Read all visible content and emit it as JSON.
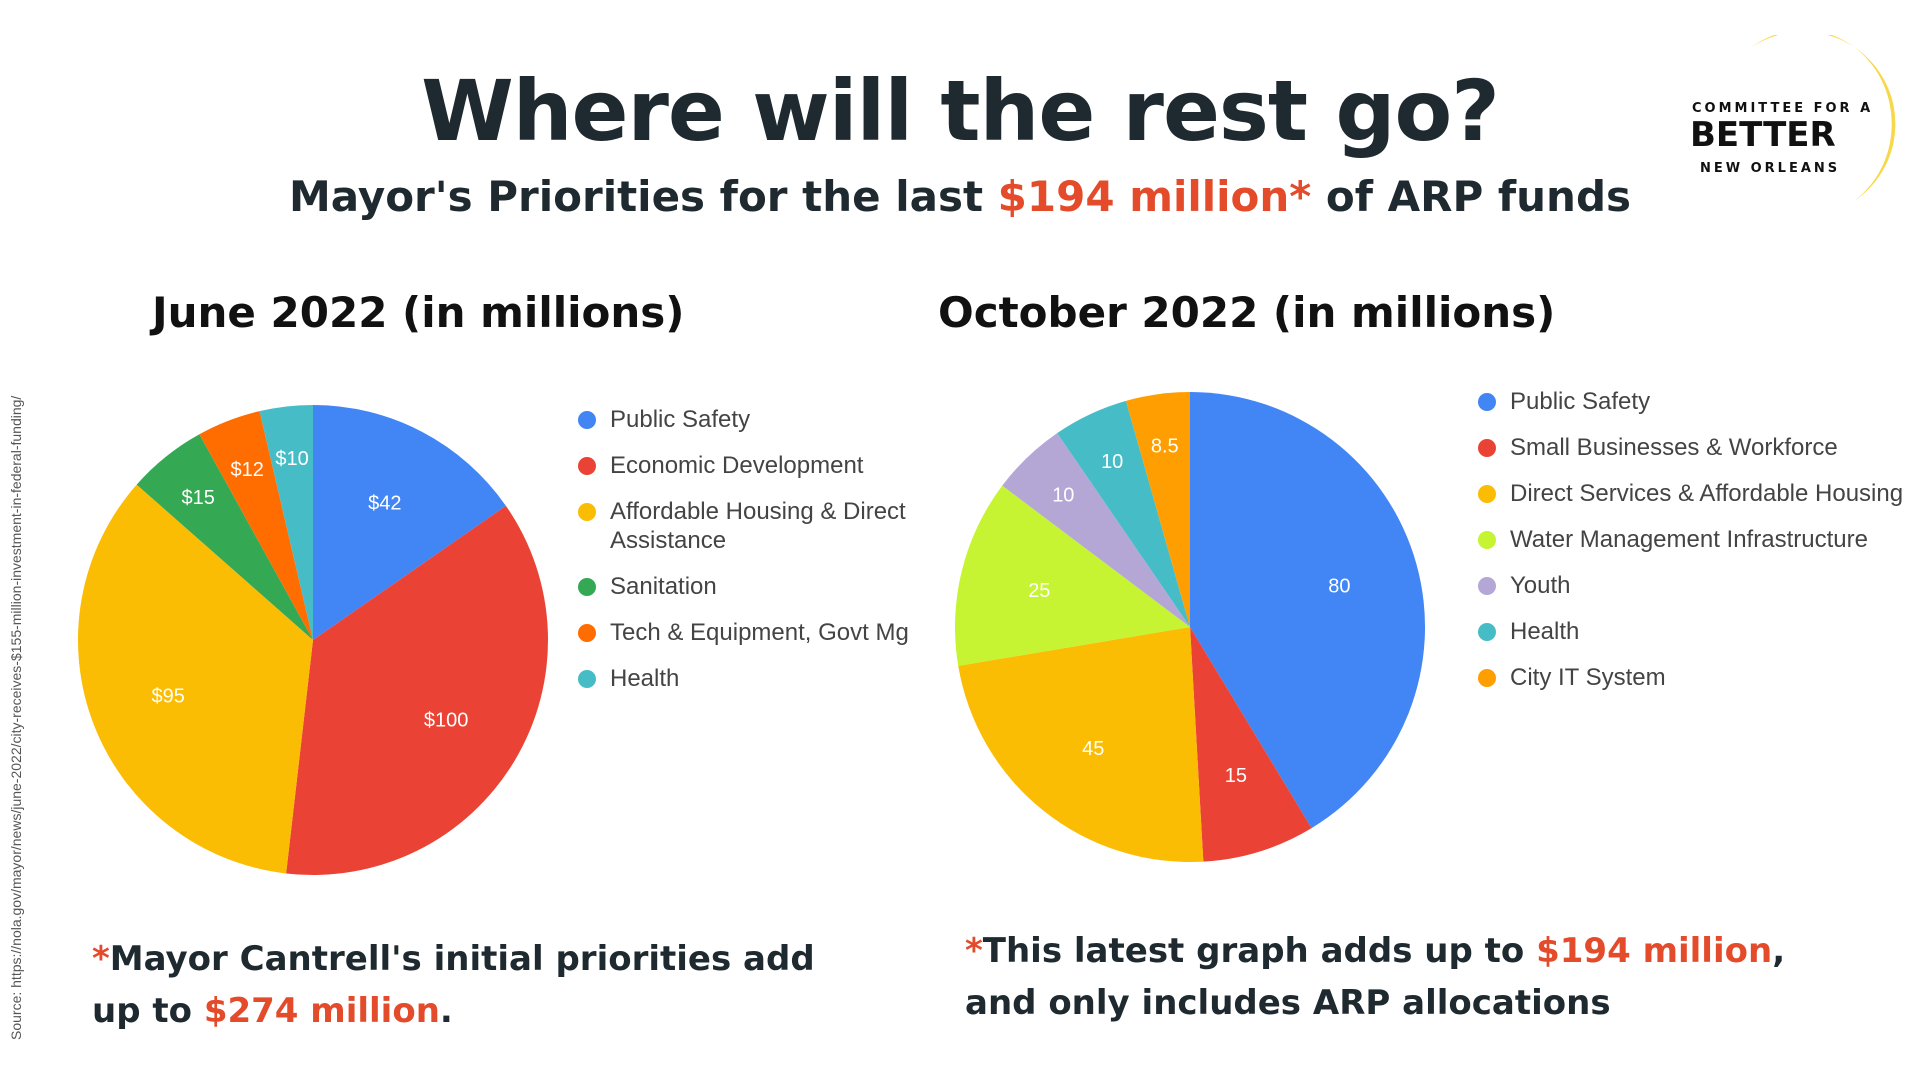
{
  "headline": "Where will the rest go?",
  "subtitle": {
    "before": "Mayor's Priorities for the last ",
    "highlight": "$194 million*",
    "after": " of ARP funds"
  },
  "logo": {
    "line1": "COMMITTEE FOR A",
    "line2": "BETTER",
    "line3": "NEW ORLEANS",
    "arc_color": "#f7d84a"
  },
  "source": "Source: https://nola.gov/mayor/news/june-2022/city-receives-$155-million-investment-in-federal-funding/",
  "colors": {
    "accent": "#e34b2b",
    "text": "#1e2a30"
  },
  "chart_data": [
    {
      "type": "pie",
      "title": "June 2022 (in millions)",
      "categories": [
        "Public Safety",
        "Economic Development",
        "Affordable Housing & Direct Assistance",
        "Sanitation",
        "Tech & Equipment, Govt Mg",
        "Health"
      ],
      "values": [
        42,
        100,
        95,
        15,
        12,
        10
      ],
      "data_labels": [
        "$42",
        "$100",
        "$95",
        "$15",
        "$12",
        "$10"
      ],
      "colors": [
        "#4285f4",
        "#ea4335",
        "#fbbc04",
        "#34a853",
        "#ff6d01",
        "#46bdc6"
      ],
      "legend_position": "right"
    },
    {
      "type": "pie",
      "title": "October 2022 (in millions)",
      "categories": [
        "Public Safety",
        "Small Businesses & Workforce",
        "Direct Services & Affordable Housing",
        "Water Management Infrastructure",
        "Youth",
        "Health",
        "City IT System"
      ],
      "values": [
        80,
        15,
        45,
        25,
        10,
        10,
        8.5
      ],
      "data_labels": [
        "80",
        "15",
        "45",
        "25",
        "10",
        "10",
        "8.5"
      ],
      "colors": [
        "#4285f4",
        "#ea4335",
        "#fbbc04",
        "#c6f432",
        "#b4a7d6",
        "#46bdc6",
        "#ff9e01"
      ],
      "legend_position": "right"
    }
  ],
  "footnotes": [
    {
      "star": "*",
      "before": "Mayor Cantrell's initial priorities add up to ",
      "highlight": "$274 million",
      "after": "."
    },
    {
      "star": "*",
      "before": "This latest graph adds up to ",
      "highlight": "$194 million",
      "after": ", and only includes ARP allocations"
    }
  ]
}
